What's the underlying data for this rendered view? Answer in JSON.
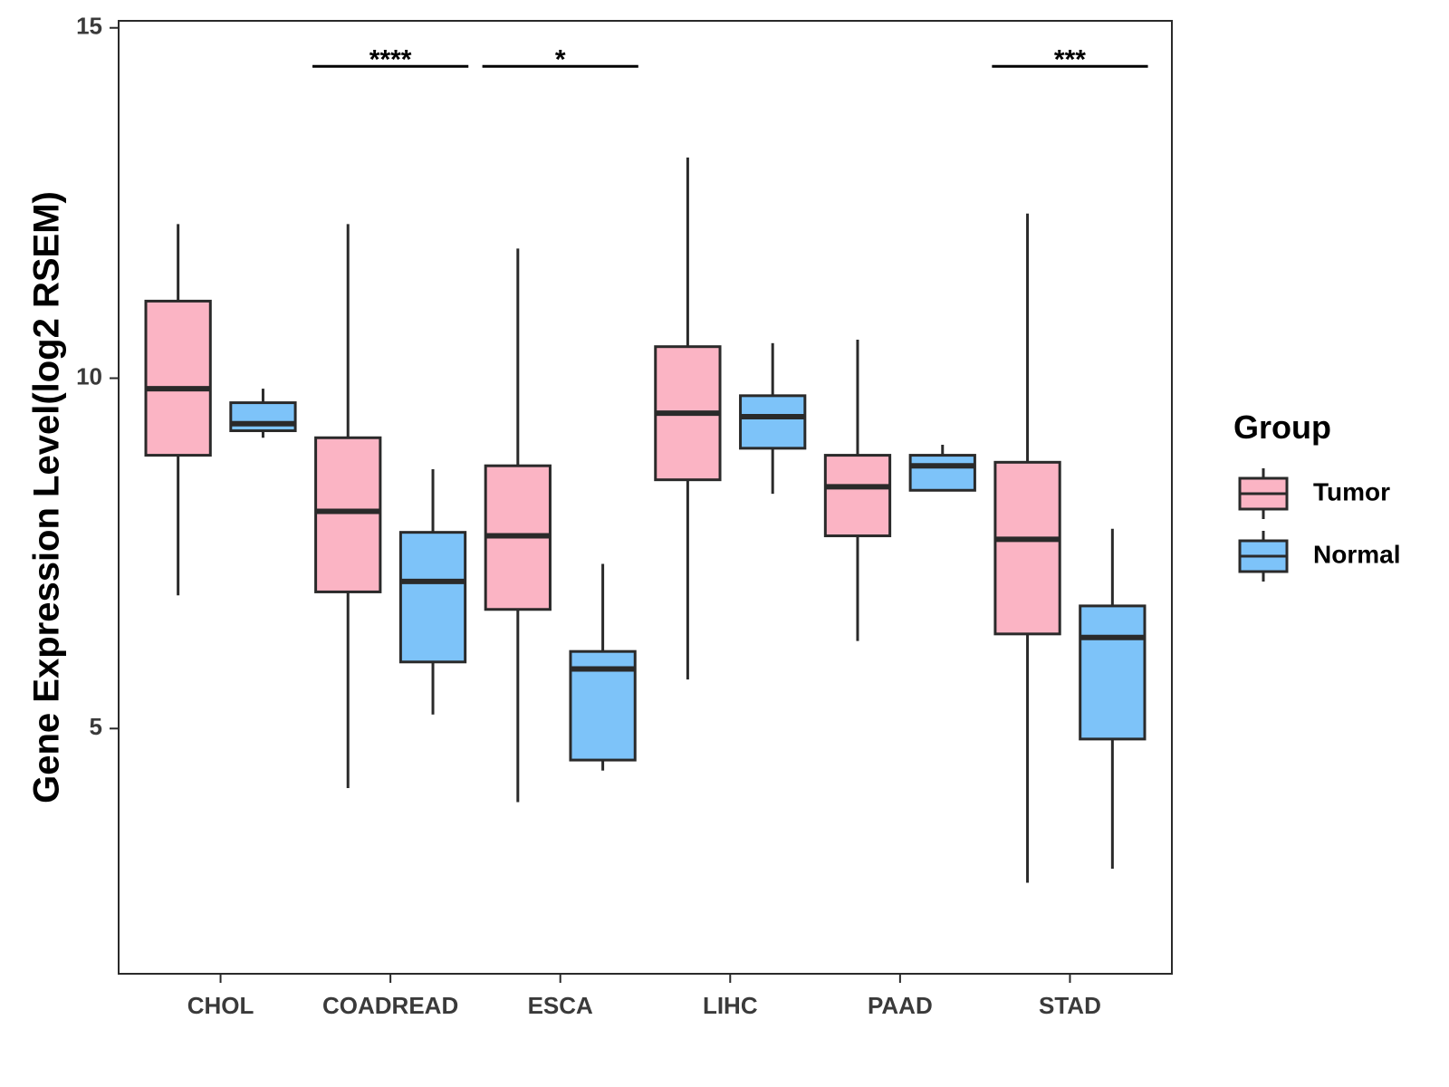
{
  "chart_data": {
    "type": "boxplot",
    "title": "",
    "xlabel": "",
    "ylabel": "Gene Expression Level(log2 RSEM)",
    "ylim": [
      1.5,
      15.1
    ],
    "yticks": [
      5,
      10,
      15
    ],
    "categories": [
      "CHOL",
      "COADREAD",
      "ESCA",
      "LIHC",
      "PAAD",
      "STAD"
    ],
    "legend": {
      "title": "Group",
      "position": "right",
      "entries": [
        {
          "name": "Tumor",
          "color": "#fbb4c4"
        },
        {
          "name": "Normal",
          "color": "#7dc3f9"
        }
      ]
    },
    "series": [
      {
        "name": "Tumor",
        "color": "#fbb4c4",
        "boxes": [
          {
            "whisker_low": 6.9,
            "q1": 8.9,
            "median": 9.85,
            "q3": 11.1,
            "whisker_high": 12.2
          },
          {
            "whisker_low": 4.15,
            "q1": 6.95,
            "median": 8.1,
            "q3": 9.15,
            "whisker_high": 12.2
          },
          {
            "whisker_low": 3.95,
            "q1": 6.7,
            "median": 7.75,
            "q3": 8.75,
            "whisker_high": 11.85
          },
          {
            "whisker_low": 5.7,
            "q1": 8.55,
            "median": 9.5,
            "q3": 10.45,
            "whisker_high": 13.15
          },
          {
            "whisker_low": 6.25,
            "q1": 7.75,
            "median": 8.45,
            "q3": 8.9,
            "whisker_high": 10.55
          },
          {
            "whisker_low": 2.8,
            "q1": 6.35,
            "median": 7.7,
            "q3": 8.8,
            "whisker_high": 12.35
          }
        ]
      },
      {
        "name": "Normal",
        "color": "#7dc3f9",
        "boxes": [
          {
            "whisker_low": 9.15,
            "q1": 9.25,
            "median": 9.35,
            "q3": 9.65,
            "whisker_high": 9.85
          },
          {
            "whisker_low": 5.2,
            "q1": 5.95,
            "median": 7.1,
            "q3": 7.8,
            "whisker_high": 8.7
          },
          {
            "whisker_low": 4.4,
            "q1": 4.55,
            "median": 5.85,
            "q3": 6.1,
            "whisker_high": 7.35
          },
          {
            "whisker_low": 8.35,
            "q1": 9.0,
            "median": 9.45,
            "q3": 9.75,
            "whisker_high": 10.5
          },
          {
            "whisker_low": 8.4,
            "q1": 8.4,
            "median": 8.75,
            "q3": 8.9,
            "whisker_high": 9.05
          },
          {
            "whisker_low": 3.0,
            "q1": 4.85,
            "median": 6.3,
            "q3": 6.75,
            "whisker_high": 7.85
          }
        ]
      }
    ],
    "annotations": [
      {
        "category": "COADREAD",
        "label": "****",
        "y": 14.45
      },
      {
        "category": "ESCA",
        "label": "*",
        "y": 14.45
      },
      {
        "category": "STAD",
        "label": "***",
        "y": 14.45
      }
    ]
  }
}
